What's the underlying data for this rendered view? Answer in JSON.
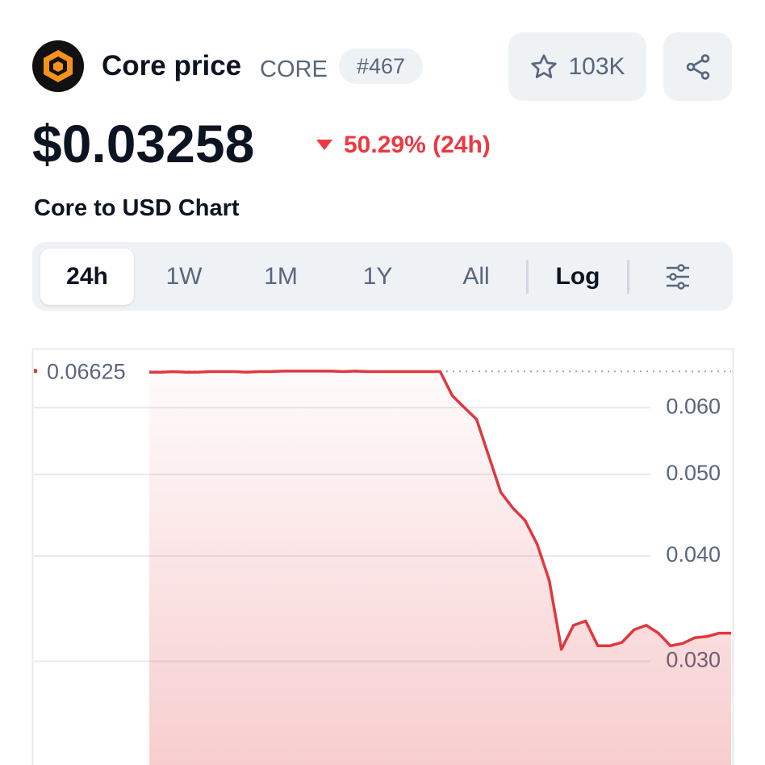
{
  "header": {
    "name": "Core price",
    "symbol": "CORE",
    "rank": "#467",
    "watchlist": "103K"
  },
  "price": {
    "value": "$0.03258",
    "change": "50.29% (24h)"
  },
  "chart_title": "Core to USD Chart",
  "tabs": [
    "24h",
    "1W",
    "1M",
    "1Y",
    "All",
    "Log"
  ],
  "chart_data": {
    "type": "line",
    "color": "#e0383e",
    "log_scale": true,
    "grid": true,
    "high": 0.06625,
    "values": [
      0.0661,
      0.0661,
      0.0662,
      0.0661,
      0.0661,
      0.0662,
      0.0662,
      0.0662,
      0.0661,
      0.0662,
      0.0662,
      0.0663,
      0.0663,
      0.0663,
      0.0663,
      0.0663,
      0.0662,
      0.0663,
      0.0662,
      0.0662,
      0.0662,
      0.0662,
      0.0662,
      0.0662,
      0.0662,
      0.062,
      0.06,
      0.0581,
      0.0526,
      0.0476,
      0.0456,
      0.0441,
      0.0413,
      0.0374,
      0.031,
      0.0331,
      0.0335,
      0.0313,
      0.0313,
      0.0316,
      0.0327,
      0.0331,
      0.0324,
      0.0313,
      0.0315,
      0.032,
      0.0321,
      0.0324,
      0.0324
    ],
    "ylim": [
      0.0226,
      0.0705
    ],
    "yticks": [
      {
        "value": 0.03,
        "label": "0.030"
      },
      {
        "value": 0.04,
        "label": "0.040"
      },
      {
        "value": 0.05,
        "label": "0.050"
      },
      {
        "value": 0.06,
        "label": "0.060"
      }
    ]
  }
}
